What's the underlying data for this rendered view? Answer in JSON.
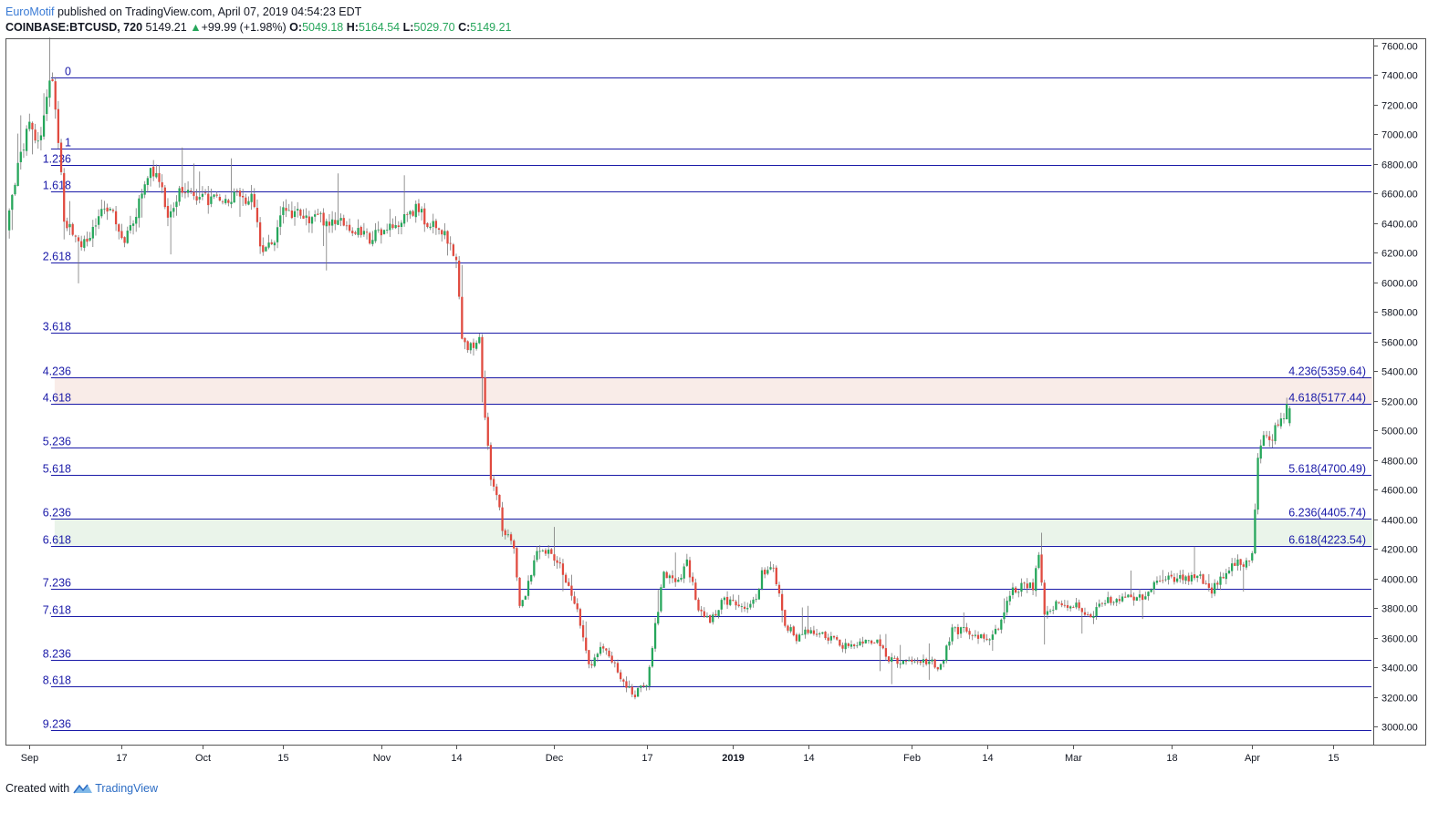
{
  "header": {
    "author": "EuroMotif",
    "published_text": "published on TradingView.com, April 07, 2019 04:54:23 EDT",
    "symbol": "COINBASE:BTCUSD, 720",
    "last": "5149.21",
    "change_arrow": "▲",
    "change": "+99.99 (+1.98%)",
    "open_label": "O:",
    "open_value": "5049.18",
    "high_label": "H:",
    "high_value": "5164.54",
    "low_label": "L:",
    "low_value": "5029.70",
    "close_label": "C:",
    "close_value": "5149.21"
  },
  "footer": {
    "created_with": "Created with",
    "brand": "TradingView",
    "logo_icon": "tradingview-logo-icon"
  },
  "colors": {
    "up": "#26a65b",
    "down": "#e04a3f",
    "fib_line": "#1a1aa8",
    "fib_label": "#1a1aa8",
    "zone_upper": "#f9ece8",
    "zone_lower": "#eaf4ea",
    "axis": "#555555"
  },
  "chart_data": {
    "type": "candlestick",
    "symbol": "COINBASE:BTCUSD",
    "interval": "720",
    "x_range": [
      "2018-08-28",
      "2019-04-22"
    ],
    "y_range": [
      2880,
      7640
    ],
    "y_scale": "linear",
    "grid": false,
    "y_ticks": [
      "7600.00",
      "7400.00",
      "7200.00",
      "7000.00",
      "6800.00",
      "6600.00",
      "6400.00",
      "6200.00",
      "6000.00",
      "5800.00",
      "5600.00",
      "5400.00",
      "5200.00",
      "5000.00",
      "4800.00",
      "4600.00",
      "4400.00",
      "4200.00",
      "4000.00",
      "3800.00",
      "3600.00",
      "3400.00",
      "3200.00",
      "3000.00"
    ],
    "x_ticks": [
      {
        "date": "2018-09-01",
        "label": "Sep",
        "bold": false
      },
      {
        "date": "2018-09-17",
        "label": "17",
        "bold": false
      },
      {
        "date": "2018-10-01",
        "label": "Oct",
        "bold": false
      },
      {
        "date": "2018-10-15",
        "label": "15",
        "bold": false
      },
      {
        "date": "2018-11-01",
        "label": "Nov",
        "bold": false
      },
      {
        "date": "2018-11-14",
        "label": "14",
        "bold": false
      },
      {
        "date": "2018-12-01",
        "label": "Dec",
        "bold": false
      },
      {
        "date": "2018-12-17",
        "label": "17",
        "bold": false
      },
      {
        "date": "2019-01-01",
        "label": "2019",
        "bold": true
      },
      {
        "date": "2019-01-14",
        "label": "14",
        "bold": false
      },
      {
        "date": "2019-02-01",
        "label": "Feb",
        "bold": false
      },
      {
        "date": "2019-02-14",
        "label": "14",
        "bold": false
      },
      {
        "date": "2019-03-01",
        "label": "Mar",
        "bold": false
      },
      {
        "date": "2019-03-18",
        "label": "18",
        "bold": false
      },
      {
        "date": "2019-04-01",
        "label": "Apr",
        "bold": false
      },
      {
        "date": "2019-04-15",
        "label": "15",
        "bold": false
      }
    ],
    "fib_levels": [
      {
        "ratio": "0",
        "price": 7380,
        "right_label": ""
      },
      {
        "ratio": "1",
        "price": 6905,
        "right_label": ""
      },
      {
        "ratio": "1.236",
        "price": 6793,
        "right_label": ""
      },
      {
        "ratio": "1.618",
        "price": 6611,
        "right_label": ""
      },
      {
        "ratio": "2.618",
        "price": 6136,
        "right_label": ""
      },
      {
        "ratio": "3.618",
        "price": 5661,
        "right_label": ""
      },
      {
        "ratio": "4.236",
        "price": 5359.64,
        "right_label": "4.236(5359.64)"
      },
      {
        "ratio": "4.618",
        "price": 5177.44,
        "right_label": "4.618(5177.44)"
      },
      {
        "ratio": "5.236",
        "price": 4882,
        "right_label": ""
      },
      {
        "ratio": "5.618",
        "price": 4700.49,
        "right_label": "5.618(4700.49)"
      },
      {
        "ratio": "6.236",
        "price": 4405.74,
        "right_label": "6.236(4405.74)"
      },
      {
        "ratio": "6.618",
        "price": 4223.54,
        "right_label": "6.618(4223.54)"
      },
      {
        "ratio": "7.236",
        "price": 3929,
        "right_label": ""
      },
      {
        "ratio": "7.618",
        "price": 3747,
        "right_label": ""
      },
      {
        "ratio": "8.236",
        "price": 3453,
        "right_label": ""
      },
      {
        "ratio": "8.618",
        "price": 3271,
        "right_label": ""
      },
      {
        "ratio": "9.236",
        "price": 2977,
        "right_label": ""
      }
    ],
    "zones": [
      {
        "from": 5177.44,
        "to": 5359.64,
        "color": "upper"
      },
      {
        "from": 4223.54,
        "to": 4405.74,
        "color": "lower"
      }
    ],
    "path": [
      [
        "2018-08-28",
        6350
      ],
      [
        "2018-08-30",
        6800
      ],
      [
        "2018-09-01",
        7050
      ],
      [
        "2018-09-03",
        6950
      ],
      [
        "2018-09-04",
        7300
      ],
      [
        "2018-09-05",
        7390
      ],
      [
        "2018-09-06",
        6950
      ],
      [
        "2018-09-07",
        6450
      ],
      [
        "2018-09-09",
        6280
      ],
      [
        "2018-09-11",
        6260
      ],
      [
        "2018-09-13",
        6450
      ],
      [
        "2018-09-15",
        6520
      ],
      [
        "2018-09-17",
        6280
      ],
      [
        "2018-09-19",
        6400
      ],
      [
        "2018-09-21",
        6700
      ],
      [
        "2018-09-23",
        6750
      ],
      [
        "2018-09-25",
        6450
      ],
      [
        "2018-09-27",
        6600
      ],
      [
        "2018-09-29",
        6600
      ],
      [
        "2018-10-01",
        6580
      ],
      [
        "2018-10-04",
        6530
      ],
      [
        "2018-10-07",
        6600
      ],
      [
        "2018-10-10",
        6550
      ],
      [
        "2018-10-11",
        6250
      ],
      [
        "2018-10-13",
        6230
      ],
      [
        "2018-10-15",
        6500
      ],
      [
        "2018-10-18",
        6450
      ],
      [
        "2018-10-22",
        6420
      ],
      [
        "2018-10-26",
        6390
      ],
      [
        "2018-10-30",
        6300
      ],
      [
        "2018-11-01",
        6350
      ],
      [
        "2018-11-04",
        6380
      ],
      [
        "2018-11-07",
        6500
      ],
      [
        "2018-11-09",
        6400
      ],
      [
        "2018-11-12",
        6340
      ],
      [
        "2018-11-14",
        6180
      ],
      [
        "2018-11-15",
        5600
      ],
      [
        "2018-11-17",
        5550
      ],
      [
        "2018-11-18",
        5600
      ],
      [
        "2018-11-19",
        5100
      ],
      [
        "2018-11-20",
        4650
      ],
      [
        "2018-11-21",
        4550
      ],
      [
        "2018-11-22",
        4350
      ],
      [
        "2018-11-24",
        4200
      ],
      [
        "2018-11-25",
        3800
      ],
      [
        "2018-11-26",
        3900
      ],
      [
        "2018-11-28",
        4200
      ],
      [
        "2018-11-29",
        4200
      ],
      [
        "2018-12-01",
        4150
      ],
      [
        "2018-12-03",
        4000
      ],
      [
        "2018-12-05",
        3800
      ],
      [
        "2018-12-07",
        3400
      ],
      [
        "2018-12-09",
        3550
      ],
      [
        "2018-12-11",
        3450
      ],
      [
        "2018-12-13",
        3300
      ],
      [
        "2018-12-15",
        3220
      ],
      [
        "2018-12-17",
        3300
      ],
      [
        "2018-12-19",
        3800
      ],
      [
        "2018-12-20",
        4050
      ],
      [
        "2018-12-22",
        3950
      ],
      [
        "2018-12-24",
        4100
      ],
      [
        "2018-12-26",
        3800
      ],
      [
        "2018-12-28",
        3700
      ],
      [
        "2018-12-30",
        3850
      ],
      [
        "2019-01-01",
        3850
      ],
      [
        "2019-01-03",
        3800
      ],
      [
        "2019-01-05",
        3850
      ],
      [
        "2019-01-06",
        4050
      ],
      [
        "2019-01-08",
        4050
      ],
      [
        "2019-01-10",
        3700
      ],
      [
        "2019-01-12",
        3600
      ],
      [
        "2019-01-14",
        3650
      ],
      [
        "2019-01-16",
        3620
      ],
      [
        "2019-01-18",
        3600
      ],
      [
        "2019-01-20",
        3550
      ],
      [
        "2019-01-24",
        3580
      ],
      [
        "2019-01-26",
        3580
      ],
      [
        "2019-01-28",
        3450
      ],
      [
        "2019-02-01",
        3430
      ],
      [
        "2019-02-04",
        3450
      ],
      [
        "2019-02-06",
        3400
      ],
      [
        "2019-02-08",
        3650
      ],
      [
        "2019-02-10",
        3650
      ],
      [
        "2019-02-14",
        3600
      ],
      [
        "2019-02-16",
        3650
      ],
      [
        "2019-02-18",
        3900
      ],
      [
        "2019-02-20",
        3950
      ],
      [
        "2019-02-22",
        3950
      ],
      [
        "2019-02-23",
        4150
      ],
      [
        "2019-02-24",
        3780
      ],
      [
        "2019-02-26",
        3820
      ],
      [
        "2019-02-28",
        3820
      ],
      [
        "2019-03-02",
        3820
      ],
      [
        "2019-03-04",
        3720
      ],
      [
        "2019-03-06",
        3850
      ],
      [
        "2019-03-10",
        3880
      ],
      [
        "2019-03-13",
        3870
      ],
      [
        "2019-03-16",
        3990
      ],
      [
        "2019-03-20",
        4010
      ],
      [
        "2019-03-23",
        4000
      ],
      [
        "2019-03-25",
        3920
      ],
      [
        "2019-03-27",
        4030
      ],
      [
        "2019-03-29",
        4100
      ],
      [
        "2019-03-31",
        4110
      ],
      [
        "2019-04-01",
        4150
      ],
      [
        "2019-04-02",
        4800
      ],
      [
        "2019-04-03",
        4950
      ],
      [
        "2019-04-04",
        4920
      ],
      [
        "2019-04-05",
        5000
      ],
      [
        "2019-04-06",
        5049
      ],
      [
        "2019-04-07",
        5149
      ]
    ],
    "last_candle": {
      "open": 5049.18,
      "high": 5164.54,
      "low": 5029.7,
      "close": 5149.21
    }
  }
}
